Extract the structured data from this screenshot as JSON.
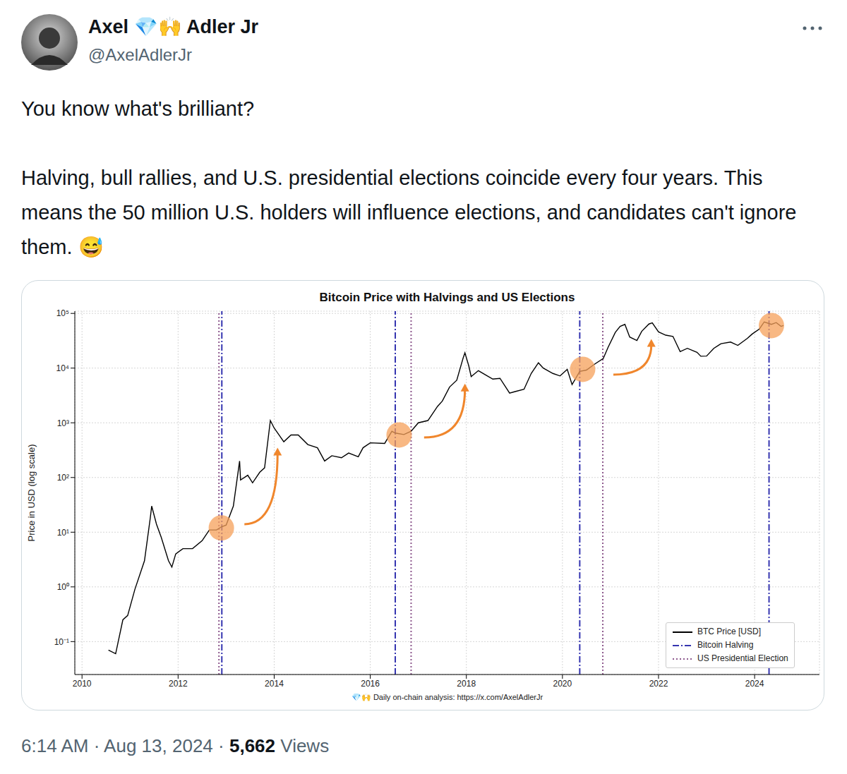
{
  "tweet": {
    "name": "Axel 💎🙌 Adler Jr",
    "handle": "@AxelAdlerJr",
    "text": [
      "You know what's brilliant?",
      "Halving, bull rallies, and U.S. presidential elections coincide every four years. This means the 50 million U.S. holders will influence elections, and candidates can't ignore them. 😅"
    ],
    "time": "6:14 AM",
    "date": "Aug 13, 2024",
    "separator": "·",
    "views": "5,662",
    "views_label": "Views"
  },
  "chart_data": {
    "type": "line",
    "title": "Bitcoin Price with Halvings and US Elections",
    "y_label": "Price in USD (log scale)",
    "source": "💎🙌 Daily on-chain analysis: https://x.com/AxelAdlerJr",
    "log": "y",
    "grid": true,
    "legend": "lower right",
    "xlim": [
      2009.85,
      2025.35
    ],
    "xticks": [
      2010,
      2012,
      2014,
      2016,
      2018,
      2020,
      2022,
      2024
    ],
    "ylim": [
      0.025,
      110000
    ],
    "yticks": [
      {
        "value": 0.1,
        "label": "10⁻¹"
      },
      {
        "value": 1,
        "label": "10⁰"
      },
      {
        "value": 10,
        "label": "10¹"
      },
      {
        "value": 100,
        "label": "10²"
      },
      {
        "value": 1000,
        "label": "10³"
      },
      {
        "value": 10000,
        "label": "10⁴"
      },
      {
        "value": 100000,
        "label": "10⁵"
      }
    ],
    "series": [
      {
        "name": "BTC Price [USD]",
        "type": "line",
        "color": "#000000",
        "line_style": "solid",
        "x": [
          2010.55,
          2010.7,
          2010.85,
          2010.95,
          2011.1,
          2011.3,
          2011.42,
          2011.45,
          2011.55,
          2011.65,
          2011.8,
          2011.87,
          2011.95,
          2012.1,
          2012.3,
          2012.5,
          2012.65,
          2012.8,
          2012.9,
          2013.0,
          2013.15,
          2013.28,
          2013.3,
          2013.45,
          2013.55,
          2013.7,
          2013.8,
          2013.92,
          2014.0,
          2014.1,
          2014.2,
          2014.35,
          2014.5,
          2014.7,
          2014.9,
          2015.05,
          2015.2,
          2015.4,
          2015.55,
          2015.75,
          2015.85,
          2016.0,
          2016.3,
          2016.45,
          2016.52,
          2016.7,
          2016.85,
          2017.0,
          2017.2,
          2017.4,
          2017.5,
          2017.65,
          2017.8,
          2017.93,
          2017.97,
          2018.05,
          2018.1,
          2018.25,
          2018.4,
          2018.55,
          2018.7,
          2018.9,
          2019.0,
          2019.2,
          2019.35,
          2019.5,
          2019.6,
          2019.8,
          2019.95,
          2020.1,
          2020.2,
          2020.36,
          2020.5,
          2020.65,
          2020.85,
          2020.95,
          2021.1,
          2021.2,
          2021.3,
          2021.4,
          2021.55,
          2021.65,
          2021.8,
          2021.87,
          2022.0,
          2022.15,
          2022.3,
          2022.45,
          2022.6,
          2022.8,
          2022.88,
          2023.0,
          2023.15,
          2023.3,
          2023.5,
          2023.65,
          2023.85,
          2023.95,
          2024.1,
          2024.2,
          2024.35,
          2024.45,
          2024.55,
          2024.6
        ],
        "values": [
          0.07,
          0.06,
          0.25,
          0.3,
          0.9,
          3,
          18,
          30,
          14,
          8,
          3,
          2.3,
          4,
          5,
          5,
          7,
          11,
          11,
          12.5,
          13.5,
          30,
          200,
          90,
          110,
          80,
          125,
          150,
          1100,
          800,
          600,
          450,
          600,
          600,
          400,
          350,
          200,
          250,
          230,
          280,
          240,
          350,
          430,
          420,
          700,
          650,
          610,
          700,
          1000,
          1100,
          2000,
          2500,
          4500,
          6000,
          15000,
          19000,
          11000,
          7000,
          9000,
          7500,
          6300,
          6500,
          3500,
          3700,
          4100,
          8000,
          12500,
          10000,
          8000,
          7200,
          9500,
          5000,
          8700,
          9200,
          11500,
          15000,
          24000,
          45000,
          58000,
          63000,
          37000,
          32000,
          47000,
          64000,
          67000,
          46000,
          40000,
          38000,
          20000,
          23000,
          19500,
          16500,
          16600,
          23000,
          28000,
          30000,
          26000,
          35000,
          42000,
          52000,
          70000,
          63000,
          68000,
          58000,
          60000
        ]
      },
      {
        "name": "Bitcoin Halving",
        "type": "vline",
        "color": "#3535b0",
        "line_style": "dashdot",
        "x": [
          2012.91,
          2016.52,
          2020.36,
          2024.3
        ]
      },
      {
        "name": "US Presidential Election",
        "type": "vline",
        "color": "#8e5a8e",
        "line_style": "dotted",
        "x": [
          2012.85,
          2016.85,
          2020.84
        ]
      }
    ],
    "highlights": {
      "color": "#f6a05a",
      "x": [
        2012.9,
        2016.6,
        2020.42,
        2024.35
      ],
      "values": [
        12,
        600,
        9500,
        60000
      ]
    },
    "arrows": {
      "color": "#f0862c",
      "from_x": [
        2013.38,
        2017.12,
        2021.06
      ],
      "from_y": [
        14,
        540,
        7600
      ],
      "to_x": [
        2014.07,
        2017.97,
        2021.85
      ],
      "to_y": [
        350,
        5200,
        34000
      ]
    }
  }
}
